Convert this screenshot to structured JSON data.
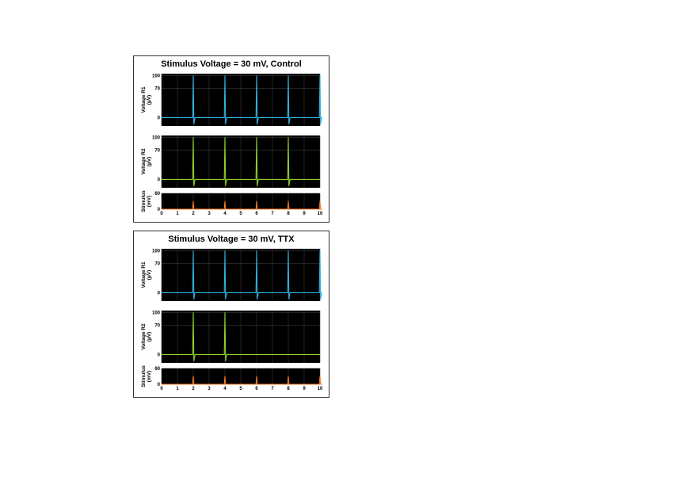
{
  "chart_data": [
    {
      "type": "line",
      "title": "Stimulus Voltage = 30 mV, Control",
      "x_ticks": [
        "0",
        "1",
        "2",
        "3",
        "4",
        "5",
        "6",
        "7",
        "8",
        "9",
        "10"
      ],
      "xlim": [
        0,
        10
      ],
      "grid": true,
      "subplots": [
        {
          "ylabel_line1": "Voltage R1",
          "ylabel_line2": "(µV)",
          "y_ticks": [
            "100",
            "70",
            "0"
          ],
          "ylim": [
            -20,
            105
          ],
          "color": "#2fb3e0",
          "series": [
            {
              "baseline": 0,
              "spike_times": [
                2,
                4,
                6,
                8,
                10
              ],
              "spike_peak": 100,
              "spike_trough": -15
            }
          ]
        },
        {
          "ylabel_line1": "Voltage R2",
          "ylabel_line2": "(µV)",
          "y_ticks": [
            "100",
            "70",
            "0"
          ],
          "ylim": [
            -20,
            105
          ],
          "color": "#8fd12a",
          "series": [
            {
              "baseline": 0,
              "spike_times": [
                2,
                4,
                6,
                8
              ],
              "spike_peak": 100,
              "spike_trough": -15
            }
          ]
        },
        {
          "ylabel_line1": "Stimulus",
          "ylabel_line2": "(mV)",
          "y_ticks": [
            "60",
            "0"
          ],
          "ylim": [
            0,
            60
          ],
          "color": "#ff7a1a",
          "series": [
            {
              "baseline": 0,
              "spike_times": [
                2,
                4,
                6,
                8,
                10
              ],
              "spike_peak": 30,
              "spike_trough": 0
            }
          ]
        }
      ]
    },
    {
      "type": "line",
      "title": "Stimulus Voltage = 30 mV, TTX",
      "x_ticks": [
        "0",
        "1",
        "2",
        "3",
        "4",
        "5",
        "6",
        "7",
        "8",
        "9",
        "10"
      ],
      "xlim": [
        0,
        10
      ],
      "grid": true,
      "subplots": [
        {
          "ylabel_line1": "Voltage R1",
          "ylabel_line2": "(µV)",
          "y_ticks": [
            "100",
            "70",
            "0"
          ],
          "ylim": [
            -20,
            105
          ],
          "color": "#2fb3e0",
          "series": [
            {
              "baseline": 0,
              "spike_times": [
                2,
                4,
                6,
                8,
                10
              ],
              "spike_peak": 100,
              "spike_trough": -15
            }
          ]
        },
        {
          "ylabel_line1": "Voltage R2",
          "ylabel_line2": "(µV)",
          "y_ticks": [
            "100",
            "70",
            "0"
          ],
          "ylim": [
            -20,
            105
          ],
          "color": "#8fd12a",
          "series": [
            {
              "baseline": 0,
              "spike_times": [
                2,
                4
              ],
              "spike_peak": 100,
              "spike_trough": -15
            }
          ]
        },
        {
          "ylabel_line1": "Stimulus",
          "ylabel_line2": "(mV)",
          "y_ticks": [
            "60",
            "0"
          ],
          "ylim": [
            0,
            60
          ],
          "color": "#ff7a1a",
          "series": [
            {
              "baseline": 0,
              "spike_times": [
                2,
                4,
                6,
                8,
                10
              ],
              "spike_peak": 30,
              "spike_trough": 0
            }
          ]
        }
      ]
    }
  ]
}
